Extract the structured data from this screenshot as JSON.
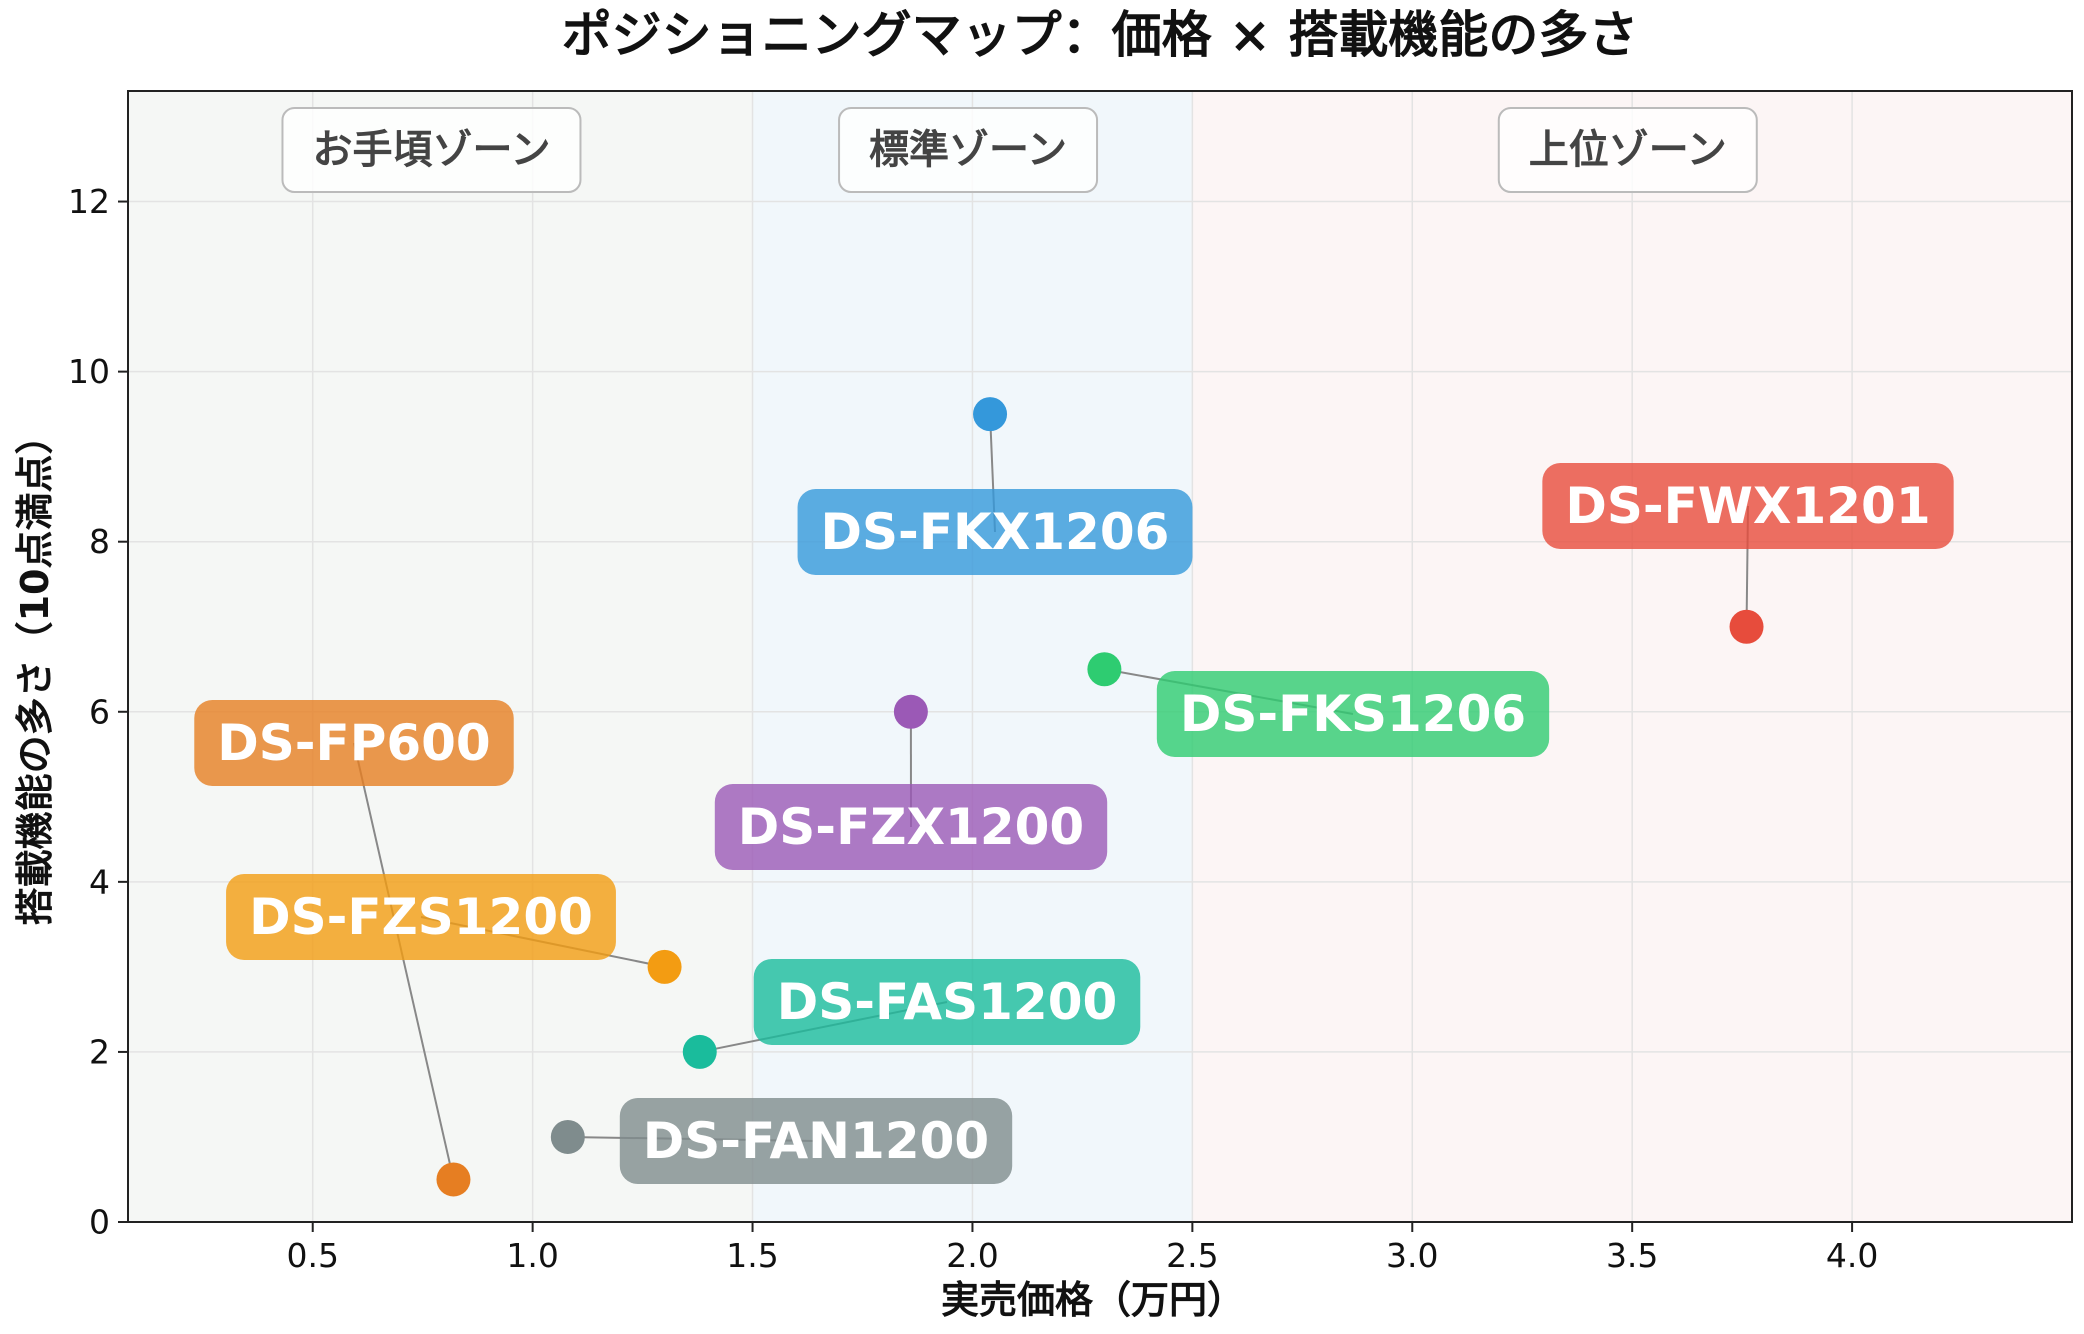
{
  "chart_data": {
    "type": "scatter",
    "title": "ポジショニングマップ：価格 × 搭載機能の多さ",
    "xlabel": "実売価格（万円）",
    "ylabel": "搭載機能の多さ（10点満点）",
    "xlim": [
      0.08,
      4.5
    ],
    "ylim": [
      0,
      13.3
    ],
    "xticks": [
      "0.5",
      "1.0",
      "1.5",
      "2.0",
      "2.5",
      "3.0",
      "3.5",
      "4.0"
    ],
    "yticks": [
      "0",
      "2",
      "4",
      "6",
      "8",
      "10",
      "12"
    ],
    "grid": true,
    "zones": [
      {
        "label": "お手頃ゾーン",
        "x_from": 0.08,
        "x_to": 1.5,
        "color": "#f5f7f5"
      },
      {
        "label": "標準ゾーン",
        "x_from": 1.5,
        "x_to": 2.5,
        "color": "#f1f7fb"
      },
      {
        "label": "上位ゾーン",
        "x_from": 2.5,
        "x_to": 4.5,
        "color": "#fcf5f5"
      }
    ],
    "points": [
      {
        "name": "DS-FKX1206",
        "x": 2.04,
        "y": 9.5,
        "color": "#3498db"
      },
      {
        "name": "DS-FWX1201",
        "x": 3.76,
        "y": 7.0,
        "color": "#e74c3c"
      },
      {
        "name": "DS-FKS1206",
        "x": 2.3,
        "y": 6.5,
        "color": "#2ecc71"
      },
      {
        "name": "DS-FZX1200",
        "x": 1.86,
        "y": 6.0,
        "color": "#9b59b6"
      },
      {
        "name": "DS-FP600",
        "x": 0.82,
        "y": 0.5,
        "color": "#e67e22"
      },
      {
        "name": "DS-FZS1200",
        "x": 1.3,
        "y": 3.0,
        "color": "#f39c12"
      },
      {
        "name": "DS-FAS1200",
        "x": 1.38,
        "y": 2.0,
        "color": "#1abc9c"
      },
      {
        "name": "DS-FAN1200",
        "x": 1.08,
        "y": 1.0,
        "color": "#7f8c8d"
      }
    ]
  }
}
